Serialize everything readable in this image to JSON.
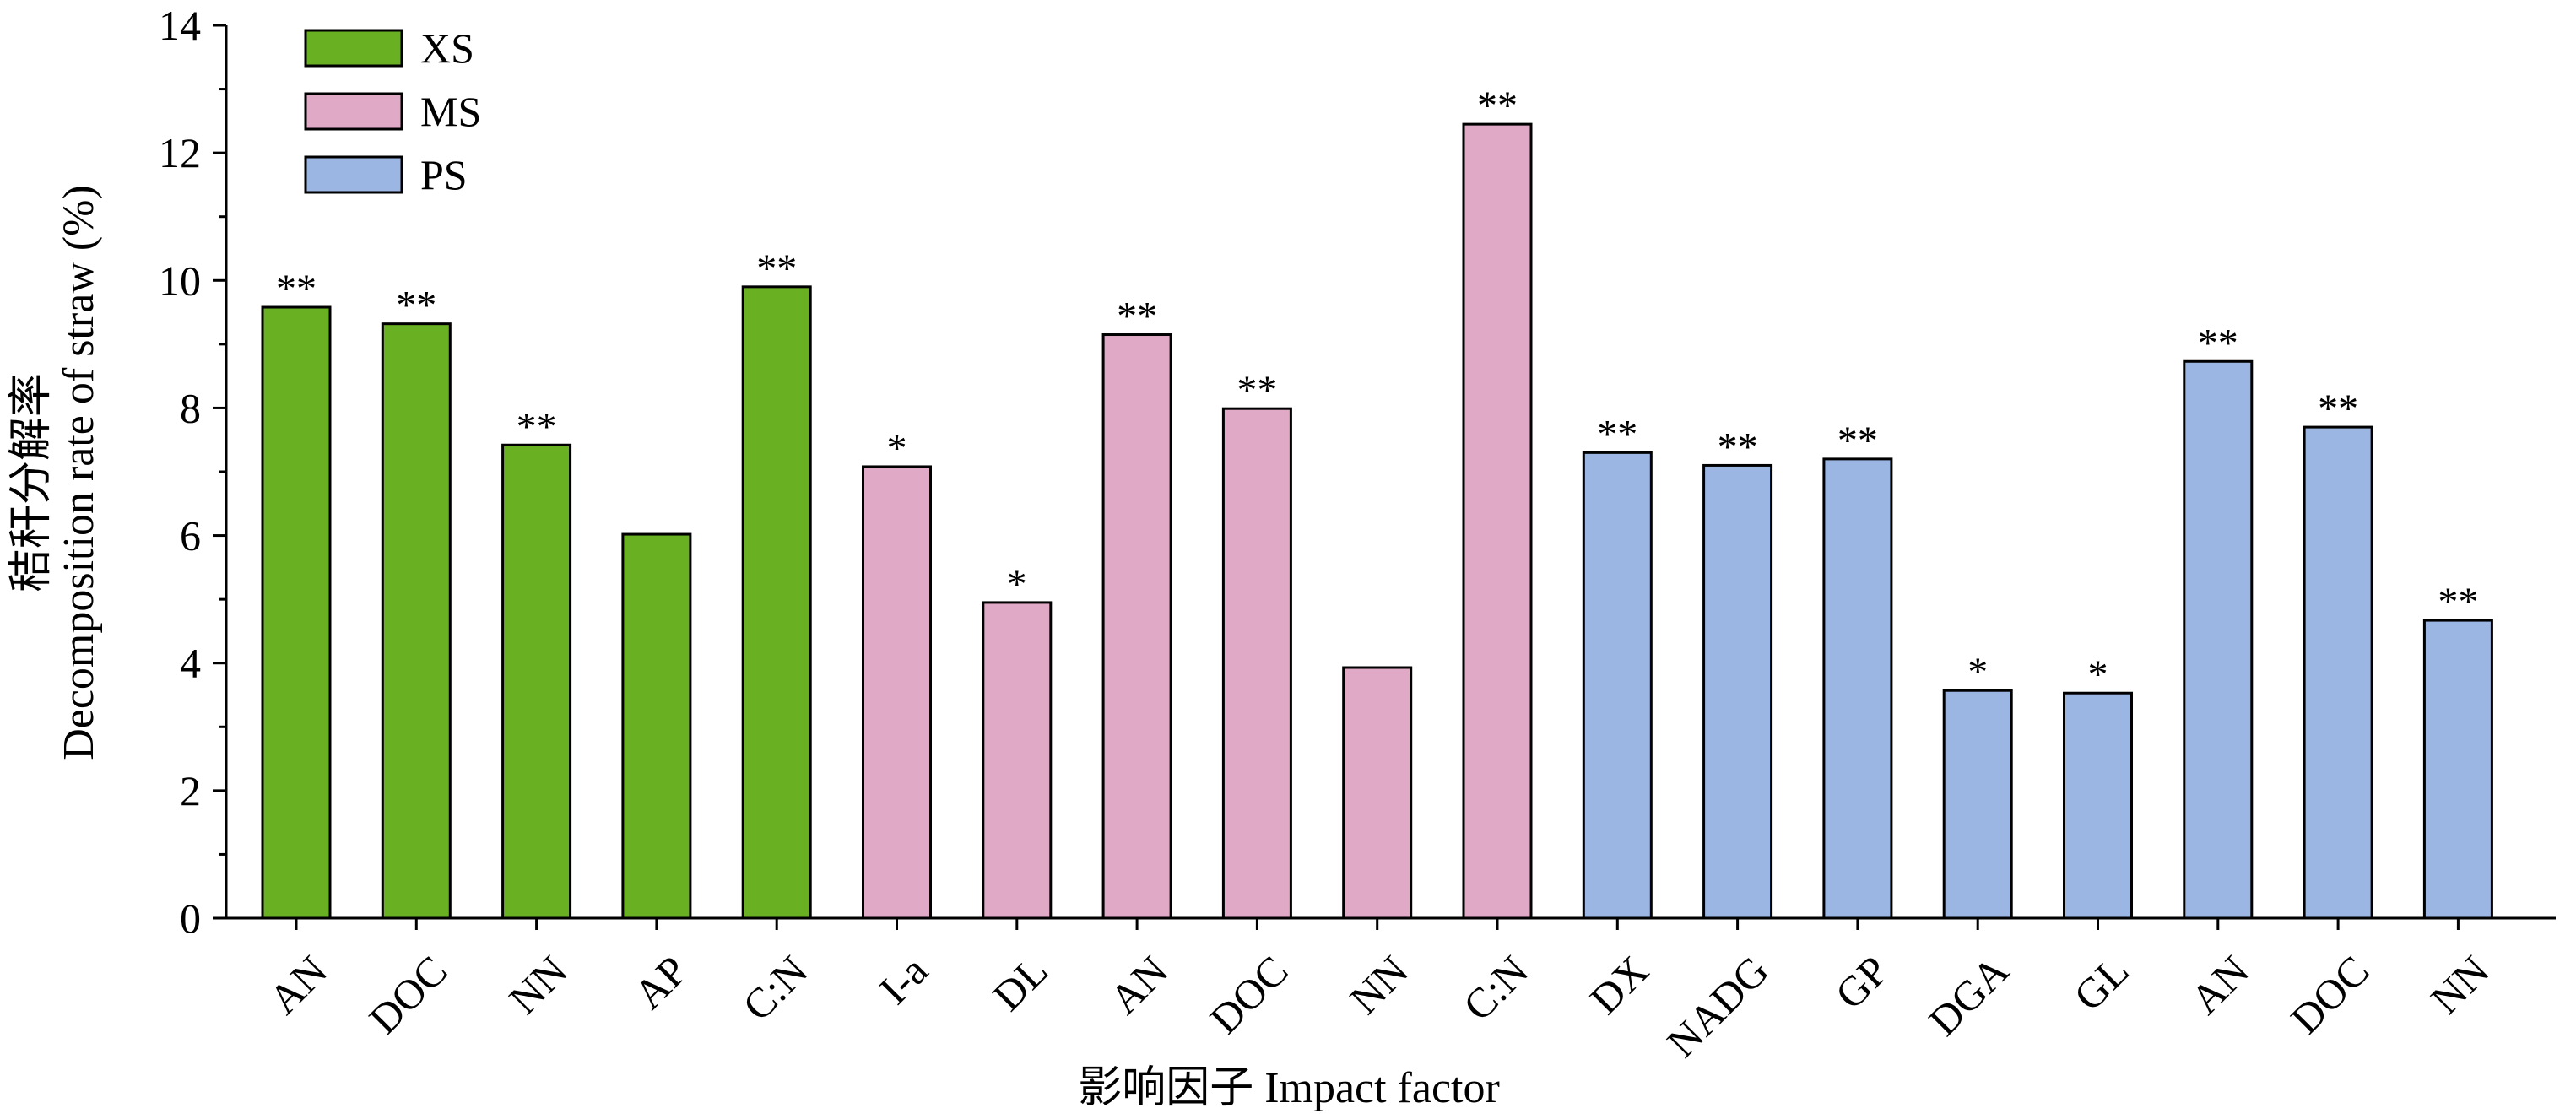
{
  "chart_data": {
    "type": "bar",
    "xlabel": "影响因子 Impact factor",
    "ylabel": "Decomposition rate of straw (%)",
    "ylabel_cn": "秸秆分解率",
    "ylim": [
      0,
      14
    ],
    "yticks": [
      0,
      2,
      4,
      6,
      8,
      10,
      12,
      14
    ],
    "grid": false,
    "legend_position": "top-left",
    "legend": [
      {
        "name": "XS",
        "color": "#6AB023"
      },
      {
        "name": "MS",
        "color": "#E0A9C6"
      },
      {
        "name": "PS",
        "color": "#9CB6E4"
      }
    ],
    "categories": [
      "AN",
      "DOC",
      "NN",
      "AP",
      "C:N",
      "I-a",
      "DL",
      "AN",
      "DOC",
      "NN",
      "C:N",
      "DX",
      "NADG",
      "GP",
      "DGA",
      "GL",
      "AN",
      "DOC",
      "NN"
    ],
    "values": [
      9.58,
      9.32,
      7.42,
      6.02,
      9.9,
      7.08,
      4.95,
      9.15,
      7.99,
      3.93,
      12.45,
      7.3,
      7.1,
      7.2,
      3.57,
      3.53,
      8.73,
      7.7,
      4.67
    ],
    "groups": [
      "XS",
      "XS",
      "XS",
      "XS",
      "XS",
      "MS",
      "MS",
      "MS",
      "MS",
      "MS",
      "MS",
      "PS",
      "PS",
      "PS",
      "PS",
      "PS",
      "PS",
      "PS",
      "PS"
    ],
    "significance": [
      "**",
      "**",
      "**",
      "",
      "**",
      "*",
      "*",
      "**",
      "**",
      "",
      "**",
      "**",
      "**",
      "**",
      "*",
      "*",
      "**",
      "**",
      "**"
    ]
  }
}
